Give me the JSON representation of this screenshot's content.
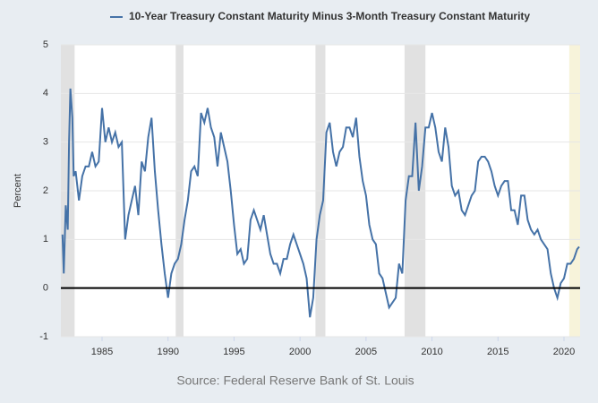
{
  "chart_data": {
    "type": "line",
    "series": [
      {
        "name": "10-Year Treasury Constant Maturity Minus 3-Month Treasury Constant Maturity",
        "color": "#4572a7",
        "x": [
          1982.0,
          1982.1,
          1982.25,
          1982.4,
          1982.5,
          1982.6,
          1982.75,
          1982.85,
          1983.0,
          1983.25,
          1983.5,
          1983.75,
          1984.0,
          1984.25,
          1984.5,
          1984.75,
          1985.0,
          1985.25,
          1985.5,
          1985.75,
          1986.0,
          1986.25,
          1986.5,
          1986.75,
          1987.0,
          1987.25,
          1987.5,
          1987.75,
          1988.0,
          1988.25,
          1988.5,
          1988.75,
          1989.0,
          1989.25,
          1989.5,
          1989.75,
          1990.0,
          1990.25,
          1990.5,
          1990.75,
          1991.0,
          1991.25,
          1991.5,
          1991.75,
          1992.0,
          1992.25,
          1992.5,
          1992.75,
          1993.0,
          1993.25,
          1993.5,
          1993.75,
          1994.0,
          1994.25,
          1994.5,
          1994.75,
          1995.0,
          1995.25,
          1995.5,
          1995.75,
          1996.0,
          1996.25,
          1996.5,
          1996.75,
          1997.0,
          1997.25,
          1997.5,
          1997.75,
          1998.0,
          1998.25,
          1998.5,
          1998.75,
          1999.0,
          1999.25,
          1999.5,
          1999.75,
          2000.0,
          2000.25,
          2000.5,
          2000.75,
          2001.0,
          2001.25,
          2001.5,
          2001.75,
          2002.0,
          2002.25,
          2002.5,
          2002.75,
          2003.0,
          2003.25,
          2003.5,
          2003.75,
          2004.0,
          2004.25,
          2004.5,
          2004.75,
          2005.0,
          2005.25,
          2005.5,
          2005.75,
          2006.0,
          2006.25,
          2006.5,
          2006.75,
          2007.0,
          2007.25,
          2007.5,
          2007.75,
          2008.0,
          2008.25,
          2008.5,
          2008.75,
          2009.0,
          2009.25,
          2009.5,
          2009.75,
          2010.0,
          2010.25,
          2010.5,
          2010.75,
          2011.0,
          2011.25,
          2011.5,
          2011.75,
          2012.0,
          2012.25,
          2012.5,
          2012.75,
          2013.0,
          2013.25,
          2013.5,
          2013.75,
          2014.0,
          2014.25,
          2014.5,
          2014.75,
          2015.0,
          2015.25,
          2015.5,
          2015.75,
          2016.0,
          2016.25,
          2016.5,
          2016.75,
          2017.0,
          2017.25,
          2017.5,
          2017.75,
          2018.0,
          2018.25,
          2018.5,
          2018.75,
          2019.0,
          2019.25,
          2019.5,
          2019.75,
          2020.0,
          2020.25,
          2020.5,
          2020.75,
          2021.0,
          2021.15
        ],
        "values": [
          1.1,
          0.3,
          1.7,
          1.2,
          3.0,
          4.1,
          3.5,
          2.3,
          2.4,
          1.8,
          2.3,
          2.5,
          2.5,
          2.8,
          2.5,
          2.6,
          3.7,
          3.0,
          3.3,
          3.0,
          3.2,
          2.9,
          3.0,
          1.0,
          1.5,
          1.8,
          2.1,
          1.5,
          2.6,
          2.4,
          3.1,
          3.5,
          2.4,
          1.6,
          0.9,
          0.3,
          -0.2,
          0.3,
          0.5,
          0.6,
          0.9,
          1.4,
          1.8,
          2.4,
          2.5,
          2.3,
          3.6,
          3.4,
          3.7,
          3.3,
          3.1,
          2.5,
          3.2,
          2.9,
          2.6,
          2.0,
          1.3,
          0.7,
          0.8,
          0.5,
          0.6,
          1.4,
          1.6,
          1.4,
          1.2,
          1.5,
          1.1,
          0.7,
          0.5,
          0.5,
          0.3,
          0.6,
          0.6,
          0.9,
          1.1,
          0.9,
          0.7,
          0.5,
          0.2,
          -0.6,
          -0.2,
          1.0,
          1.5,
          1.8,
          3.2,
          3.4,
          2.8,
          2.5,
          2.8,
          2.9,
          3.3,
          3.3,
          3.1,
          3.5,
          2.7,
          2.2,
          1.9,
          1.3,
          1.0,
          0.9,
          0.3,
          0.2,
          -0.1,
          -0.4,
          -0.3,
          -0.2,
          0.5,
          0.3,
          1.8,
          2.3,
          2.3,
          3.4,
          2.0,
          2.5,
          3.3,
          3.3,
          3.6,
          3.3,
          2.8,
          2.6,
          3.3,
          2.9,
          2.1,
          1.9,
          2.0,
          1.6,
          1.5,
          1.7,
          1.9,
          2.0,
          2.6,
          2.7,
          2.7,
          2.6,
          2.4,
          2.1,
          1.9,
          2.1,
          2.2,
          2.2,
          1.6,
          1.6,
          1.3,
          1.9,
          1.9,
          1.4,
          1.2,
          1.1,
          1.2,
          1.0,
          0.9,
          0.8,
          0.3,
          0.0,
          -0.2,
          0.1,
          0.2,
          0.5,
          0.5,
          0.6,
          0.8,
          0.85
        ]
      }
    ],
    "xlim": [
      1981.88,
      2021.22
    ],
    "ylim": [
      -1,
      5
    ],
    "xticks": [
      1985,
      1990,
      1995,
      2000,
      2005,
      2010,
      2015,
      2020
    ],
    "yticks": [
      -1,
      0,
      1,
      2,
      3,
      4,
      5
    ],
    "ylabel": "Percent",
    "source": "Source: Federal Reserve Bank of St. Louis",
    "recessions": [
      [
        1981.58,
        1982.92
      ],
      [
        1990.58,
        1991.17
      ],
      [
        2001.17,
        2001.92
      ],
      [
        2007.92,
        2009.5
      ]
    ],
    "highlight": [
      2020.4,
      2021.22
    ],
    "grid": true,
    "zero_line": true
  }
}
